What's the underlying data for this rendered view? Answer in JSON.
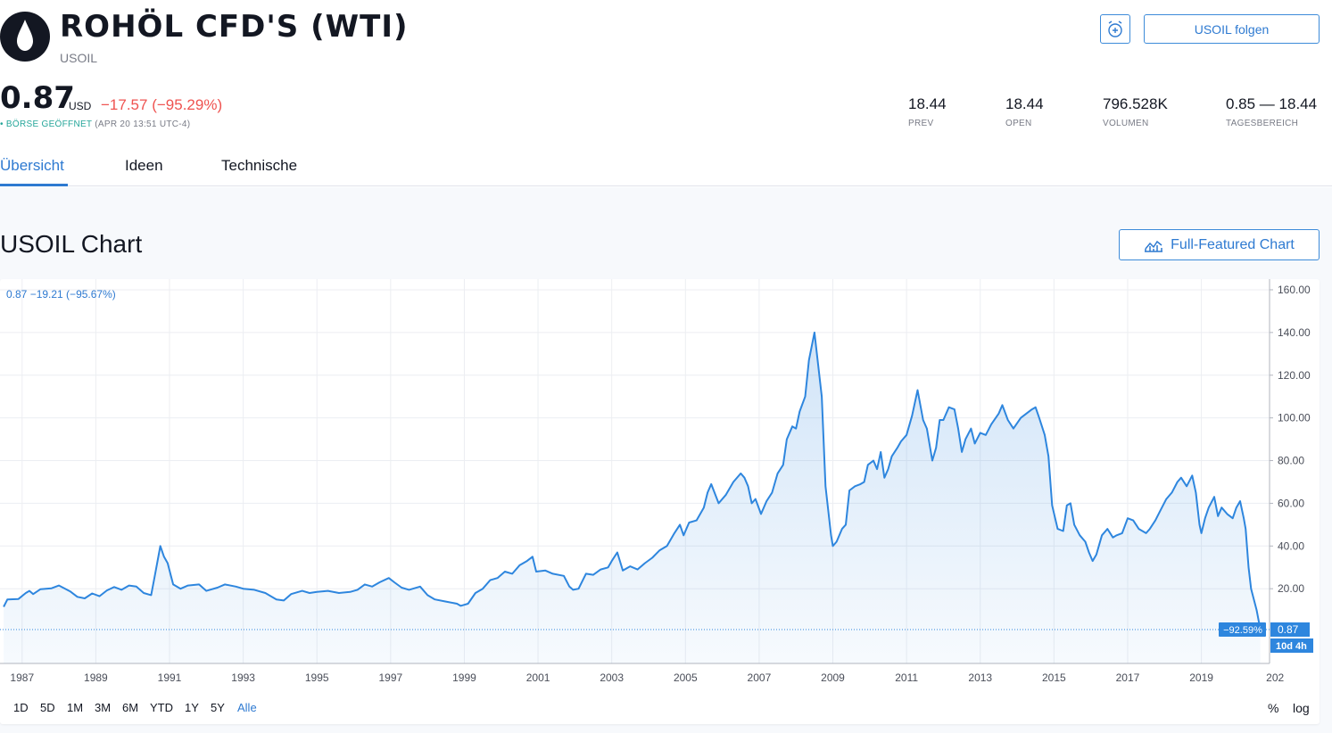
{
  "header": {
    "logo_icon": "oil-drop-icon",
    "title": "ROHÖL CFD'S (WTI)",
    "ticker": "USOIL",
    "alarm_icon": "alarm-clock-icon",
    "follow_label": "USOIL folgen"
  },
  "quote": {
    "price": "0.87",
    "currency": "USD",
    "change": "−17.57 (−95.29%)",
    "status_dot": "•",
    "status_open": "BÖRSE GEÖFFNET",
    "status_time": "(APR 20 13:51 UTC-4)"
  },
  "stats": [
    {
      "value": "18.44",
      "label": "PREV"
    },
    {
      "value": "18.44",
      "label": "OPEN"
    },
    {
      "value": "796.528K",
      "label": "VOLUMEN"
    },
    {
      "value": "0.85 — 18.44",
      "label": "TAGESBEREICH"
    }
  ],
  "tabs": [
    {
      "label": "Übersicht",
      "active": true
    },
    {
      "label": "Ideen",
      "active": false
    },
    {
      "label": "Technische",
      "active": false
    }
  ],
  "chart_section": {
    "title": "USOIL Chart",
    "full_featured_label": "Full-Featured Chart",
    "full_featured_icon": "chart-icon",
    "legend": "0.87  −19.21 (−95.67%)"
  },
  "ranges": [
    "1D",
    "5D",
    "1M",
    "3M",
    "6M",
    "YTD",
    "1Y",
    "5Y",
    "Alle"
  ],
  "active_range": "Alle",
  "percent_label": "%",
  "log_label": "log",
  "colors": {
    "accent": "#2e7ad1",
    "line": "#2e86de",
    "down": "#ef5350",
    "status_open": "#26a69a"
  },
  "chart_data": {
    "type": "area",
    "y_ticks": [
      "160.00",
      "140.00",
      "120.00",
      "100.00",
      "80.00",
      "60.00",
      "40.00",
      "20.00"
    ],
    "x_ticks": [
      "1987",
      "1989",
      "1991",
      "1993",
      "1995",
      "1997",
      "1999",
      "2001",
      "2003",
      "2005",
      "2007",
      "2009",
      "2011",
      "2013",
      "2015",
      "2017",
      "2019",
      "202"
    ],
    "ylim": [
      -15,
      165
    ],
    "xlim": [
      1986.4,
      2020.85
    ],
    "last_price_label": "0.87",
    "last_change_label": "−92.59%",
    "countdown_label": "10d 4h",
    "last_value": 0.87,
    "grid": true,
    "series": [
      {
        "points": [
          [
            1986.5,
            11.5
          ],
          [
            1986.6,
            15.0
          ],
          [
            1986.9,
            15.2
          ],
          [
            1987.1,
            18.0
          ],
          [
            1987.2,
            19.0
          ],
          [
            1987.3,
            17.5
          ],
          [
            1987.5,
            19.8
          ],
          [
            1987.8,
            20.2
          ],
          [
            1988.0,
            21.5
          ],
          [
            1988.3,
            18.8
          ],
          [
            1988.5,
            16.2
          ],
          [
            1988.7,
            15.5
          ],
          [
            1988.9,
            17.8
          ],
          [
            1989.1,
            16.5
          ],
          [
            1989.3,
            19.2
          ],
          [
            1989.5,
            20.8
          ],
          [
            1989.7,
            19.5
          ],
          [
            1989.9,
            21.5
          ],
          [
            1990.1,
            21.0
          ],
          [
            1990.3,
            18.0
          ],
          [
            1990.5,
            17.0
          ],
          [
            1990.6,
            26.0
          ],
          [
            1990.75,
            40.0
          ],
          [
            1990.85,
            35.0
          ],
          [
            1990.95,
            32.0
          ],
          [
            1991.1,
            22.0
          ],
          [
            1991.3,
            20.0
          ],
          [
            1991.5,
            21.5
          ],
          [
            1991.8,
            22.0
          ],
          [
            1992.0,
            19.0
          ],
          [
            1992.3,
            20.5
          ],
          [
            1992.5,
            22.0
          ],
          [
            1992.8,
            21.0
          ],
          [
            1993.0,
            20.0
          ],
          [
            1993.3,
            19.5
          ],
          [
            1993.6,
            18.0
          ],
          [
            1993.9,
            15.0
          ],
          [
            1994.1,
            14.5
          ],
          [
            1994.3,
            17.5
          ],
          [
            1994.6,
            19.0
          ],
          [
            1994.8,
            18.0
          ],
          [
            1995.0,
            18.5
          ],
          [
            1995.3,
            19.0
          ],
          [
            1995.6,
            18.0
          ],
          [
            1995.9,
            18.5
          ],
          [
            1996.1,
            19.5
          ],
          [
            1996.3,
            22.0
          ],
          [
            1996.5,
            21.0
          ],
          [
            1996.7,
            23.0
          ],
          [
            1996.95,
            25.0
          ],
          [
            1997.1,
            23.0
          ],
          [
            1997.3,
            20.5
          ],
          [
            1997.5,
            19.5
          ],
          [
            1997.8,
            21.0
          ],
          [
            1998.0,
            17.0
          ],
          [
            1998.2,
            15.0
          ],
          [
            1998.5,
            14.0
          ],
          [
            1998.8,
            13.0
          ],
          [
            1998.9,
            12.0
          ],
          [
            1999.1,
            13.0
          ],
          [
            1999.3,
            18.0
          ],
          [
            1999.5,
            20.0
          ],
          [
            1999.7,
            24.0
          ],
          [
            1999.9,
            25.0
          ],
          [
            2000.1,
            28.0
          ],
          [
            2000.3,
            27.0
          ],
          [
            2000.5,
            31.0
          ],
          [
            2000.7,
            33.0
          ],
          [
            2000.85,
            35.0
          ],
          [
            2000.95,
            28.0
          ],
          [
            2001.2,
            28.5
          ],
          [
            2001.4,
            27.0
          ],
          [
            2001.7,
            26.0
          ],
          [
            2001.85,
            21.0
          ],
          [
            2001.95,
            19.5
          ],
          [
            2002.1,
            20.0
          ],
          [
            2002.3,
            27.0
          ],
          [
            2002.5,
            26.5
          ],
          [
            2002.7,
            29.0
          ],
          [
            2002.9,
            30.0
          ],
          [
            2003.0,
            33.0
          ],
          [
            2003.15,
            37.0
          ],
          [
            2003.3,
            28.5
          ],
          [
            2003.5,
            30.5
          ],
          [
            2003.7,
            29.0
          ],
          [
            2003.9,
            32.0
          ],
          [
            2004.1,
            34.5
          ],
          [
            2004.3,
            38.0
          ],
          [
            2004.5,
            40.0
          ],
          [
            2004.7,
            46.0
          ],
          [
            2004.85,
            50.0
          ],
          [
            2004.95,
            45.0
          ],
          [
            2005.1,
            51.0
          ],
          [
            2005.3,
            52.0
          ],
          [
            2005.5,
            58.0
          ],
          [
            2005.6,
            65.0
          ],
          [
            2005.7,
            69.0
          ],
          [
            2005.9,
            60.0
          ],
          [
            2006.1,
            64.0
          ],
          [
            2006.3,
            70.0
          ],
          [
            2006.5,
            74.0
          ],
          [
            2006.6,
            72.0
          ],
          [
            2006.7,
            68.0
          ],
          [
            2006.8,
            60.0
          ],
          [
            2006.9,
            62.0
          ],
          [
            2007.05,
            55.0
          ],
          [
            2007.2,
            61.0
          ],
          [
            2007.35,
            65.0
          ],
          [
            2007.5,
            74.0
          ],
          [
            2007.65,
            78.0
          ],
          [
            2007.75,
            90.0
          ],
          [
            2007.9,
            96.0
          ],
          [
            2008.0,
            95.0
          ],
          [
            2008.1,
            103.0
          ],
          [
            2008.25,
            110.0
          ],
          [
            2008.35,
            127.0
          ],
          [
            2008.5,
            140.0
          ],
          [
            2008.6,
            125.0
          ],
          [
            2008.7,
            110.0
          ],
          [
            2008.8,
            68.0
          ],
          [
            2008.95,
            45.0
          ],
          [
            2009.0,
            40.0
          ],
          [
            2009.1,
            42.0
          ],
          [
            2009.25,
            48.0
          ],
          [
            2009.35,
            50.0
          ],
          [
            2009.45,
            66.0
          ],
          [
            2009.6,
            68.0
          ],
          [
            2009.75,
            69.0
          ],
          [
            2009.85,
            70.0
          ],
          [
            2009.95,
            78.0
          ],
          [
            2010.1,
            80.0
          ],
          [
            2010.2,
            76.0
          ],
          [
            2010.3,
            84.0
          ],
          [
            2010.4,
            72.0
          ],
          [
            2010.5,
            76.0
          ],
          [
            2010.6,
            82.0
          ],
          [
            2010.75,
            86.0
          ],
          [
            2010.85,
            89.0
          ],
          [
            2011.0,
            92.0
          ],
          [
            2011.15,
            101.0
          ],
          [
            2011.3,
            113.0
          ],
          [
            2011.45,
            99.0
          ],
          [
            2011.55,
            95.0
          ],
          [
            2011.7,
            80.0
          ],
          [
            2011.8,
            86.0
          ],
          [
            2011.9,
            99.0
          ],
          [
            2012.0,
            99.0
          ],
          [
            2012.15,
            105.0
          ],
          [
            2012.3,
            104.0
          ],
          [
            2012.4,
            95.0
          ],
          [
            2012.5,
            84.0
          ],
          [
            2012.6,
            90.0
          ],
          [
            2012.75,
            95.0
          ],
          [
            2012.85,
            88.0
          ],
          [
            2013.0,
            93.0
          ],
          [
            2013.15,
            92.0
          ],
          [
            2013.3,
            97.0
          ],
          [
            2013.5,
            102.0
          ],
          [
            2013.6,
            106.0
          ],
          [
            2013.75,
            99.0
          ],
          [
            2013.9,
            95.0
          ],
          [
            2014.1,
            100.0
          ],
          [
            2014.25,
            102.0
          ],
          [
            2014.4,
            104.0
          ],
          [
            2014.5,
            105.0
          ],
          [
            2014.6,
            100.0
          ],
          [
            2014.75,
            92.0
          ],
          [
            2014.85,
            82.0
          ],
          [
            2014.95,
            59.0
          ],
          [
            2015.1,
            48.0
          ],
          [
            2015.25,
            47.0
          ],
          [
            2015.35,
            59.0
          ],
          [
            2015.45,
            60.0
          ],
          [
            2015.55,
            50.0
          ],
          [
            2015.7,
            45.0
          ],
          [
            2015.85,
            42.0
          ],
          [
            2015.95,
            37.0
          ],
          [
            2016.05,
            33.0
          ],
          [
            2016.15,
            36.0
          ],
          [
            2016.3,
            45.0
          ],
          [
            2016.45,
            48.0
          ],
          [
            2016.6,
            44.0
          ],
          [
            2016.7,
            45.0
          ],
          [
            2016.85,
            46.0
          ],
          [
            2017.0,
            53.0
          ],
          [
            2017.15,
            52.0
          ],
          [
            2017.3,
            48.0
          ],
          [
            2017.5,
            46.0
          ],
          [
            2017.6,
            48.0
          ],
          [
            2017.75,
            52.0
          ],
          [
            2017.9,
            57.0
          ],
          [
            2018.05,
            62.0
          ],
          [
            2018.2,
            65.0
          ],
          [
            2018.35,
            70.0
          ],
          [
            2018.45,
            72.0
          ],
          [
            2018.6,
            68.0
          ],
          [
            2018.75,
            73.0
          ],
          [
            2018.85,
            65.0
          ],
          [
            2018.95,
            50.0
          ],
          [
            2019.0,
            46.0
          ],
          [
            2019.1,
            53.0
          ],
          [
            2019.2,
            58.0
          ],
          [
            2019.35,
            63.0
          ],
          [
            2019.45,
            54.0
          ],
          [
            2019.55,
            58.0
          ],
          [
            2019.7,
            55.0
          ],
          [
            2019.85,
            53.0
          ],
          [
            2019.95,
            58.0
          ],
          [
            2020.05,
            61.0
          ],
          [
            2020.15,
            53.0
          ],
          [
            2020.2,
            48.0
          ],
          [
            2020.28,
            30.0
          ],
          [
            2020.35,
            20.0
          ],
          [
            2020.5,
            10.0
          ],
          [
            2020.6,
            0.87
          ]
        ]
      }
    ]
  }
}
